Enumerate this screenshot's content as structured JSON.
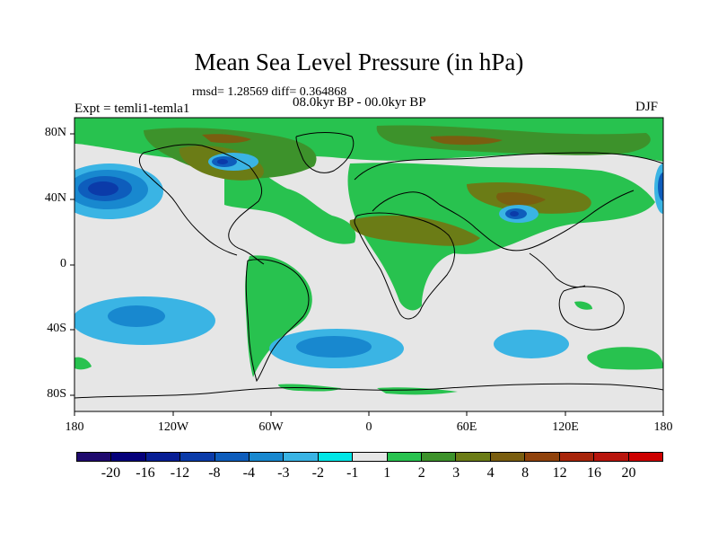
{
  "title": "Mean Sea Level Pressure (in hPa)",
  "stats_text": "rmsd= 1.28569 diff= 0.364868",
  "period_text": "08.0kyr BP - 00.0kyr BP",
  "experiment_text": "Expt = temli1-temla1",
  "season": "DJF",
  "lat_labels": [
    "80N",
    "40N",
    "0",
    "40S",
    "80S"
  ],
  "lon_labels": [
    "180",
    "120W",
    "60W",
    "0",
    "60E",
    "120E",
    "180"
  ],
  "colorbar": {
    "colors": [
      "#1f0a6e",
      "#05007a",
      "#081e95",
      "#0b3ba9",
      "#0e5dbc",
      "#1888cf",
      "#3ab4e4",
      "#00e6e6",
      "#e6e6e6",
      "#28c24f",
      "#3d922b",
      "#6b7c16",
      "#7a5e10",
      "#90420c",
      "#a8250b",
      "#b8150d",
      "#cd0000"
    ],
    "labels": [
      "-20",
      "-16",
      "-12",
      "-8",
      "-4",
      "-3",
      "-2",
      "-1",
      "1",
      "2",
      "3",
      "4",
      "8",
      "12",
      "16",
      "20"
    ]
  },
  "colors": {
    "ocean_neutral": "#e6e6e6",
    "positive_light": "#28c24f",
    "positive_mid": "#3d922b",
    "positive_dark": "#6b7c16",
    "positive_brown": "#7a5e10",
    "negative_light": "#3ab4e4",
    "negative_mid": "#1888cf",
    "negative_dark": "#0e5dbc",
    "negative_darkest": "#0b3ba9"
  }
}
